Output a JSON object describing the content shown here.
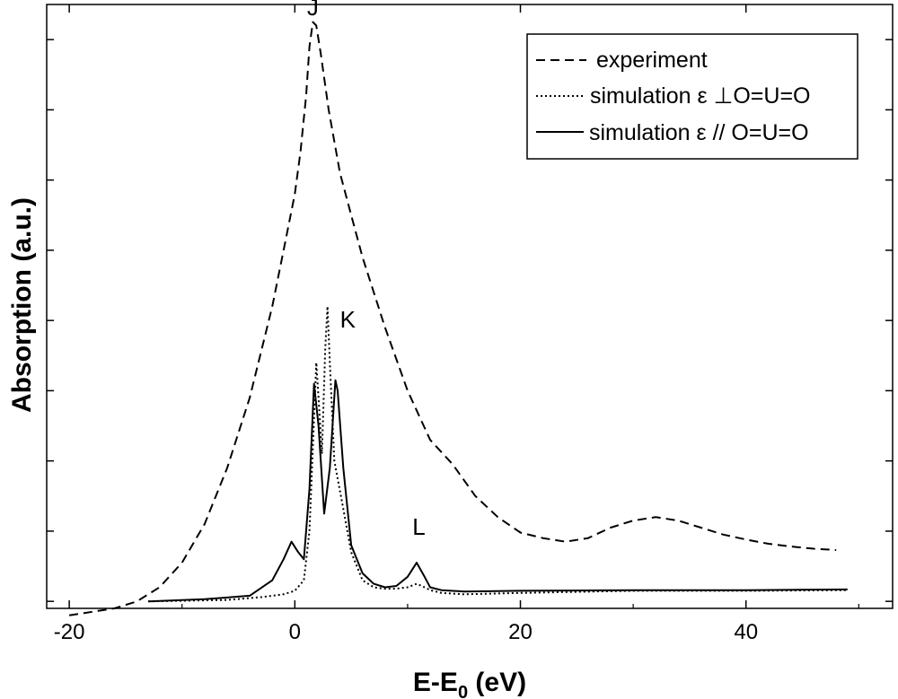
{
  "chart_data": {
    "type": "line",
    "xlabel": "E-E",
    "xlabel_sub": "0",
    "xlabel_unit": " (eV)",
    "ylabel": "Absorption (a.u.)",
    "xlim": [
      -22,
      53
    ],
    "ylim": [
      0.9,
      9.5
    ],
    "x_ticks": [
      -20,
      0,
      20,
      40
    ],
    "y_minor_ticks": [
      1,
      2,
      3,
      4,
      5,
      6,
      7,
      8,
      9
    ],
    "grid": false,
    "legend_position": "top-right",
    "series": [
      {
        "name": "experiment",
        "style": "dashed",
        "points": [
          [
            -20,
            0.8
          ],
          [
            -16,
            0.9
          ],
          [
            -14,
            1.0
          ],
          [
            -12,
            1.2
          ],
          [
            -10,
            1.55
          ],
          [
            -8,
            2.1
          ],
          [
            -6,
            2.9
          ],
          [
            -4,
            3.9
          ],
          [
            -2,
            5.2
          ],
          [
            -1,
            6.0
          ],
          [
            0,
            6.8
          ],
          [
            0.5,
            7.4
          ],
          [
            1,
            8.2
          ],
          [
            1.3,
            8.9
          ],
          [
            1.6,
            9.25
          ],
          [
            1.9,
            9.2
          ],
          [
            2.3,
            8.8
          ],
          [
            3,
            8.0
          ],
          [
            4,
            7.1
          ],
          [
            5,
            6.5
          ],
          [
            6,
            5.9
          ],
          [
            8,
            4.9
          ],
          [
            10,
            4.0
          ],
          [
            12,
            3.3
          ],
          [
            14,
            2.95
          ],
          [
            16,
            2.5
          ],
          [
            18,
            2.2
          ],
          [
            20,
            1.98
          ],
          [
            22,
            1.9
          ],
          [
            24,
            1.85
          ],
          [
            26,
            1.9
          ],
          [
            28,
            2.05
          ],
          [
            30,
            2.15
          ],
          [
            32,
            2.2
          ],
          [
            34,
            2.15
          ],
          [
            36,
            2.05
          ],
          [
            38,
            1.95
          ],
          [
            40,
            1.88
          ],
          [
            42,
            1.82
          ],
          [
            44,
            1.78
          ],
          [
            46,
            1.75
          ],
          [
            48,
            1.73
          ]
        ]
      },
      {
        "name": "simulation ε ⊥O=U=O",
        "style": "dotted",
        "points": [
          [
            -13,
            1.0
          ],
          [
            -6,
            1.02
          ],
          [
            -3,
            1.06
          ],
          [
            -1,
            1.1
          ],
          [
            0,
            1.15
          ],
          [
            0.8,
            1.3
          ],
          [
            1.3,
            2.0
          ],
          [
            1.7,
            3.6
          ],
          [
            1.9,
            4.4
          ],
          [
            2.1,
            3.9
          ],
          [
            2.4,
            3.1
          ],
          [
            2.7,
            4.6
          ],
          [
            2.9,
            5.2
          ],
          [
            3.1,
            4.4
          ],
          [
            3.5,
            3.0
          ],
          [
            4.2,
            2.4
          ],
          [
            5,
            1.7
          ],
          [
            6,
            1.3
          ],
          [
            7,
            1.2
          ],
          [
            8,
            1.18
          ],
          [
            9,
            1.18
          ],
          [
            10,
            1.2
          ],
          [
            10.8,
            1.25
          ],
          [
            11.5,
            1.2
          ],
          [
            12,
            1.16
          ],
          [
            13,
            1.12
          ],
          [
            15,
            1.1
          ],
          [
            20,
            1.12
          ],
          [
            30,
            1.15
          ],
          [
            40,
            1.15
          ],
          [
            49,
            1.16
          ]
        ]
      },
      {
        "name": "simulation ε // O=U=O",
        "style": "solid",
        "points": [
          [
            -13,
            1.0
          ],
          [
            -8,
            1.03
          ],
          [
            -4,
            1.08
          ],
          [
            -2,
            1.3
          ],
          [
            -1,
            1.6
          ],
          [
            -0.3,
            1.85
          ],
          [
            0.3,
            1.7
          ],
          [
            0.8,
            1.6
          ],
          [
            1.3,
            2.6
          ],
          [
            1.7,
            4.1
          ],
          [
            2.1,
            3.5
          ],
          [
            2.6,
            2.25
          ],
          [
            3.1,
            2.9
          ],
          [
            3.6,
            4.15
          ],
          [
            3.8,
            4.0
          ],
          [
            4.3,
            2.9
          ],
          [
            5,
            1.8
          ],
          [
            6,
            1.4
          ],
          [
            7,
            1.25
          ],
          [
            8,
            1.2
          ],
          [
            9,
            1.22
          ],
          [
            10,
            1.35
          ],
          [
            10.8,
            1.55
          ],
          [
            11.5,
            1.35
          ],
          [
            12,
            1.2
          ],
          [
            13,
            1.16
          ],
          [
            15,
            1.14
          ],
          [
            20,
            1.15
          ],
          [
            30,
            1.16
          ],
          [
            40,
            1.16
          ],
          [
            49,
            1.17
          ]
        ]
      }
    ],
    "annotations": [
      {
        "text": "J",
        "x": 1.6,
        "y": 9.35
      },
      {
        "text": "K",
        "x": 4.7,
        "y": 4.9
      },
      {
        "text": "L",
        "x": 11.0,
        "y": 1.95
      }
    ]
  }
}
